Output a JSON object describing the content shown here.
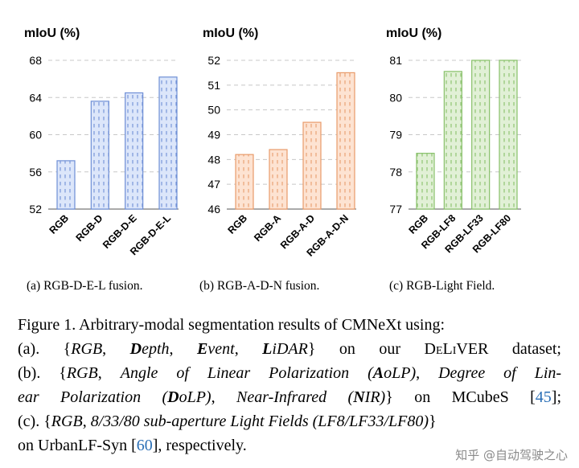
{
  "chart_data": [
    {
      "type": "bar",
      "panel": "a",
      "ylabel": "mIoU (%)",
      "categories": [
        "RGB",
        "RGB-D",
        "RGB-D-E",
        "RGB-D-E-L"
      ],
      "values": [
        57.2,
        63.6,
        64.5,
        66.2
      ],
      "ylim": [
        52,
        68
      ],
      "yticks": [
        52,
        56,
        60,
        64,
        68
      ],
      "ytick_labels": [
        "52",
        "56",
        "60",
        "64",
        "68"
      ],
      "grid": "dashed horizontal",
      "bar_fill": "#dce6fa",
      "bar_stroke": "#6f8fd6",
      "caption": "(a) RGB-D-E-L fusion."
    },
    {
      "type": "bar",
      "panel": "b",
      "ylabel": "mIoU (%)",
      "categories": [
        "RGB",
        "RGB-A",
        "RGB-A-D",
        "RGB-A-D-N"
      ],
      "values": [
        48.2,
        48.4,
        49.5,
        51.5
      ],
      "ylim": [
        46,
        52
      ],
      "yticks": [
        46,
        47,
        48,
        49,
        50,
        51,
        52
      ],
      "ytick_labels": [
        "46",
        "47",
        "48",
        "49",
        "50",
        "51",
        "52"
      ],
      "grid": "dashed horizontal",
      "bar_fill": "#fde3d2",
      "bar_stroke": "#e89b6b",
      "caption": "(b) RGB-A-D-N fusion."
    },
    {
      "type": "bar",
      "panel": "c",
      "ylabel": "mIoU (%)",
      "categories": [
        "RGB",
        "RGB-LF8",
        "RGB-LF33",
        "RGB-LF80"
      ],
      "values": [
        78.5,
        80.7,
        81.0,
        81.0
      ],
      "ylim": [
        77,
        81
      ],
      "yticks": [
        77,
        78,
        79,
        80,
        81
      ],
      "ytick_labels": [
        "77",
        "78",
        "79",
        "80",
        "81"
      ],
      "grid": "dashed horizontal",
      "bar_fill": "#e1f0d6",
      "bar_stroke": "#88c06a",
      "caption": "(c) RGB-Light Field."
    }
  ],
  "figure_caption": {
    "lines": [
      [
        {
          "t": "Figure 1. Arbitrary-modal segmentation results of CMNeXt using:"
        }
      ],
      [
        {
          "t": "(a). {"
        },
        {
          "t": "RGB",
          "i": true
        },
        {
          "t": ", "
        },
        {
          "t": "D",
          "i": true,
          "b": true
        },
        {
          "t": "epth",
          "i": true
        },
        {
          "t": ", "
        },
        {
          "t": "E",
          "i": true,
          "b": true
        },
        {
          "t": "vent",
          "i": true
        },
        {
          "t": ", "
        },
        {
          "t": "L",
          "i": true,
          "b": true
        },
        {
          "t": "iDAR",
          "i": true
        },
        {
          "t": "} on our "
        },
        {
          "t": "DeLiVER",
          "sc": true
        },
        {
          "t": " dataset;"
        }
      ],
      [
        {
          "t": "(b). {"
        },
        {
          "t": "RGB",
          "i": true
        },
        {
          "t": ", "
        },
        {
          "t": "Angle of Linear Polarization (",
          "i": true
        },
        {
          "t": "A",
          "i": true,
          "b": true
        },
        {
          "t": "oLP)",
          "i": true
        },
        {
          "t": ", "
        },
        {
          "t": "Degree of Lin-",
          "i": true
        }
      ],
      [
        {
          "t": "ear Polarization (",
          "i": true
        },
        {
          "t": "D",
          "i": true,
          "b": true
        },
        {
          "t": "oLP)",
          "i": true
        },
        {
          "t": ", "
        },
        {
          "t": "Near-Infrared (",
          "i": true
        },
        {
          "t": "N",
          "i": true,
          "b": true
        },
        {
          "t": "IR)",
          "i": true
        },
        {
          "t": "} on MCubeS ["
        },
        {
          "t": "45",
          "ref": true
        },
        {
          "t": "];"
        }
      ],
      [
        {
          "t": "(c). {"
        },
        {
          "t": "RGB",
          "i": true
        },
        {
          "t": ", "
        },
        {
          "t": "8/33/80 sub-aperture Light Fields (LF8/LF33/LF80)",
          "i": true
        },
        {
          "t": "}"
        }
      ],
      [
        {
          "t": "on UrbanLF-Syn ["
        },
        {
          "t": "60",
          "ref": true
        },
        {
          "t": "], respectively."
        }
      ]
    ]
  },
  "watermark": "知乎 @自动驾驶之心",
  "colors": {
    "axis": "#777777",
    "grid": "#c8c8c8",
    "link": "#2a6fb6"
  }
}
